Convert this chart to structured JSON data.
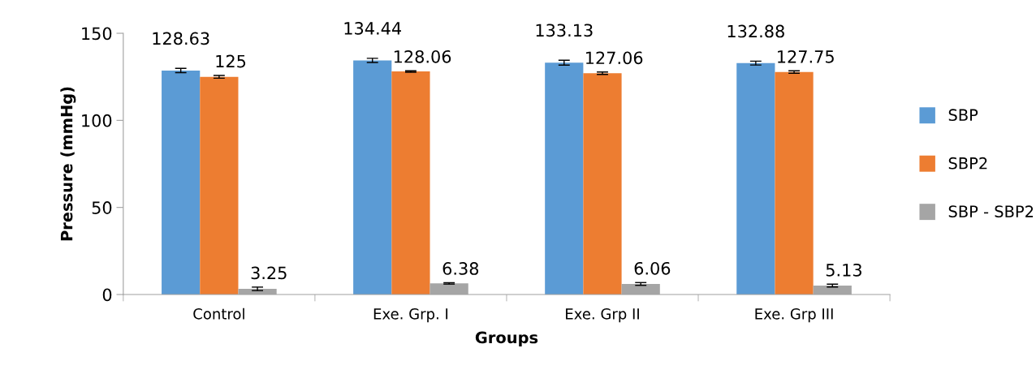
{
  "chart_data": {
    "type": "bar",
    "xlabel": "Groups",
    "ylabel": "Pressure (mmHg)",
    "categories": [
      "Control",
      "Exe. Grp. I",
      "Exe. Grp II",
      "Exe. Grp III"
    ],
    "series": [
      {
        "name": "SBP",
        "color": "#5b9bd5",
        "values": [
          128.63,
          134.44,
          133.13,
          132.88
        ],
        "errors": [
          1.2,
          1.2,
          1.4,
          1.1
        ]
      },
      {
        "name": "SBP2",
        "color": "#ed7d31",
        "values": [
          125,
          128.06,
          127.06,
          127.75
        ],
        "errors": [
          0.8,
          0.4,
          0.7,
          0.7
        ]
      },
      {
        "name": "SBP - SBP2",
        "color": "#a5a5a5",
        "values": [
          3.25,
          6.38,
          6.06,
          5.13
        ],
        "errors": [
          1.0,
          0.4,
          0.8,
          0.8
        ]
      }
    ],
    "ylim": [
      0,
      150
    ],
    "yticks": [
      0,
      50,
      100,
      150
    ],
    "grid": false,
    "legend": "right",
    "data_labels": true
  }
}
